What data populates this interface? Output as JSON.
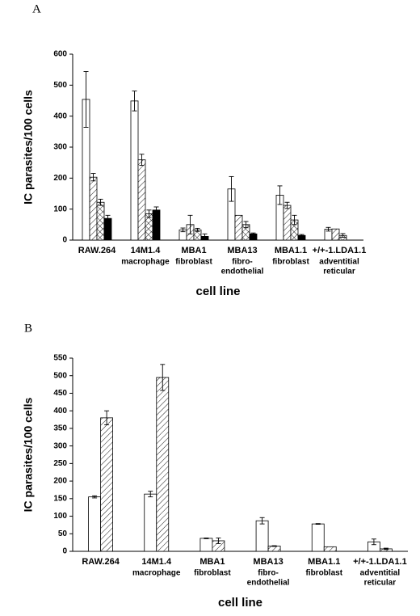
{
  "chart_data": [
    {
      "type": "bar",
      "panel": "A",
      "y_label": "IC parasites/100 cells",
      "x_label": "cell line",
      "categories": [
        "RAW.264",
        "14M1.4",
        "MBA1",
        "MBA13",
        "MBA1.1",
        "+/+-1.LDA1.1"
      ],
      "sublabels": [
        null,
        [
          "macrophage"
        ],
        [
          "fibroblast"
        ],
        [
          "fibro-",
          "endothelial"
        ],
        [
          "fibroblast"
        ],
        [
          "adventitial",
          "reticular"
        ]
      ],
      "ylim": [
        0,
        600
      ],
      "yticks": [
        0,
        100,
        200,
        300,
        400,
        500,
        600
      ],
      "series": [
        {
          "fill": "#ffffff",
          "hatch": "none",
          "values": [
            454,
            449,
            33,
            165,
            145,
            35
          ],
          "errors": [
            90,
            32,
            6,
            40,
            30,
            6
          ]
        },
        {
          "fill": "#ffffff",
          "hatch": "diagonal",
          "values": [
            203,
            259,
            50,
            80,
            112,
            36
          ],
          "errors": [
            12,
            18,
            30,
            null,
            10,
            null
          ]
        },
        {
          "fill": "#ffffff",
          "hatch": "cross",
          "values": [
            122,
            85,
            33,
            50,
            65,
            15
          ],
          "errors": [
            10,
            12,
            5,
            10,
            15,
            6
          ]
        },
        {
          "fill": "#000000",
          "hatch": "none",
          "values": [
            70,
            97,
            12,
            20,
            15,
            null
          ],
          "errors": [
            10,
            10,
            8,
            3,
            3,
            null
          ]
        }
      ]
    },
    {
      "type": "bar",
      "panel": "B",
      "y_label": "IC parasites/100 cells",
      "x_label": "cell line",
      "categories": [
        "RAW.264",
        "14M1.4",
        "MBA1",
        "MBA13",
        "MBA1.1",
        "+/+-1.LDA1.1"
      ],
      "sublabels": [
        null,
        [
          "macrophage"
        ],
        [
          "fibroblast"
        ],
        [
          "fibro-",
          "endothelial"
        ],
        [
          "fibroblast"
        ],
        [
          "adventitial",
          "reticular"
        ]
      ],
      "ylim": [
        0,
        550
      ],
      "yticks": [
        0,
        50,
        100,
        150,
        200,
        250,
        300,
        350,
        400,
        450,
        500,
        550
      ],
      "series": [
        {
          "fill": "#ffffff",
          "hatch": "none",
          "values": [
            155,
            163,
            37,
            87,
            78,
            27
          ],
          "errors": [
            3,
            8,
            1,
            9,
            1,
            8
          ]
        },
        {
          "fill": "#ffffff",
          "hatch": "diagonal",
          "values": [
            380,
            495,
            30,
            15,
            13,
            7
          ],
          "errors": [
            20,
            37,
            8,
            1,
            null,
            2
          ]
        }
      ]
    }
  ]
}
